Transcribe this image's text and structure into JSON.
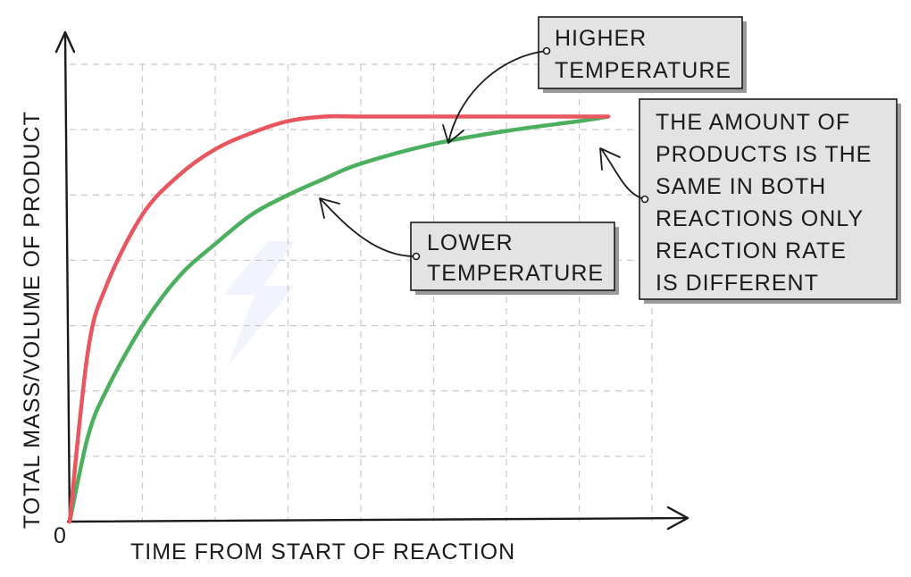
{
  "chart_data": {
    "type": "line",
    "xlabel": "TIME FROM START OF REACTION",
    "ylabel": "TOTAL MASS/VOLUME OF PRODUCT",
    "origin_label": "0",
    "grid": true,
    "xlim": [
      0,
      8.4
    ],
    "ylim": [
      0,
      7.3
    ],
    "series": [
      {
        "name": "HIGHER TEMPERATURE",
        "color": "#e8565f",
        "x": [
          0,
          0.25,
          0.5,
          1,
          1.5,
          2,
          2.5,
          3,
          3.5,
          4,
          5,
          6,
          7,
          7.4
        ],
        "y": [
          0,
          2.6,
          3.6,
          4.7,
          5.3,
          5.7,
          5.95,
          6.13,
          6.2,
          6.2,
          6.2,
          6.2,
          6.2,
          6.2
        ]
      },
      {
        "name": "LOWER TEMPERATURE",
        "color": "#4caf5f",
        "x": [
          0,
          0.25,
          0.5,
          1,
          1.5,
          2,
          2.5,
          3,
          3.5,
          4,
          5,
          6,
          7,
          7.4
        ],
        "y": [
          0,
          1.3,
          2.0,
          3.0,
          3.75,
          4.25,
          4.7,
          5.0,
          5.25,
          5.48,
          5.78,
          5.98,
          6.13,
          6.2
        ]
      }
    ],
    "annotations": [
      {
        "id": "higher",
        "lines": [
          "HIGHER",
          "TEMPERATURE"
        ],
        "target_x": 5.1,
        "target_y": 6.2
      },
      {
        "id": "lower",
        "lines": [
          "LOWER",
          "TEMPERATURE"
        ],
        "target_x": 3.5,
        "target_y": 5.2
      },
      {
        "id": "same",
        "lines": [
          "THE AMOUNT OF",
          "PRODUCTS IS THE",
          "SAME IN BOTH",
          "REACTIONS ONLY",
          "REACTION RATE",
          "IS DIFFERENT"
        ],
        "target_x": 7.3,
        "target_y": 5.75
      }
    ]
  },
  "colors": {
    "higher": "#e8565f",
    "lower": "#4caf5f",
    "grid": "#c8c8c8",
    "box_fill": "#e3e3e3"
  }
}
